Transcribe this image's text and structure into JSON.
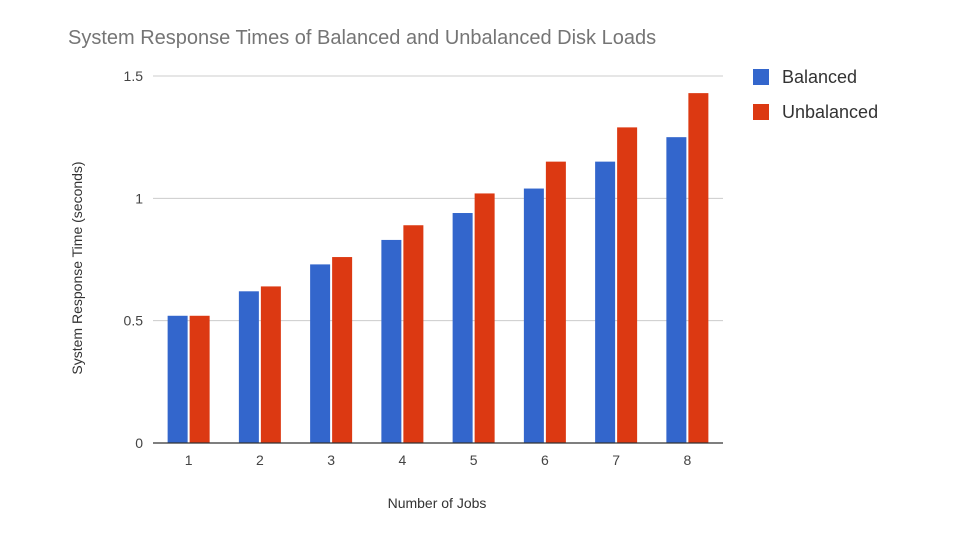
{
  "chart_data": {
    "type": "bar",
    "title": "System Response Times of Balanced and Unbalanced Disk Loads",
    "xlabel": "Number of Jobs",
    "ylabel": "System Response Time (seconds)",
    "categories": [
      "1",
      "2",
      "3",
      "4",
      "5",
      "6",
      "7",
      "8"
    ],
    "series": [
      {
        "name": "Balanced",
        "color": "#3366cc",
        "values": [
          0.52,
          0.62,
          0.73,
          0.83,
          0.94,
          1.04,
          1.15,
          1.25
        ]
      },
      {
        "name": "Unbalanced",
        "color": "#dc3912",
        "values": [
          0.52,
          0.64,
          0.76,
          0.89,
          1.02,
          1.15,
          1.29,
          1.43
        ]
      }
    ],
    "ylim": [
      0,
      1.5
    ],
    "yticks": [
      {
        "value": 0,
        "label": "0"
      },
      {
        "value": 0.5,
        "label": "0.5"
      },
      {
        "value": 1,
        "label": "1"
      },
      {
        "value": 1.5,
        "label": "1.5"
      }
    ],
    "grid": true,
    "legend_position": "right",
    "grid_color": "#cccccc",
    "axis_color": "#333333"
  }
}
